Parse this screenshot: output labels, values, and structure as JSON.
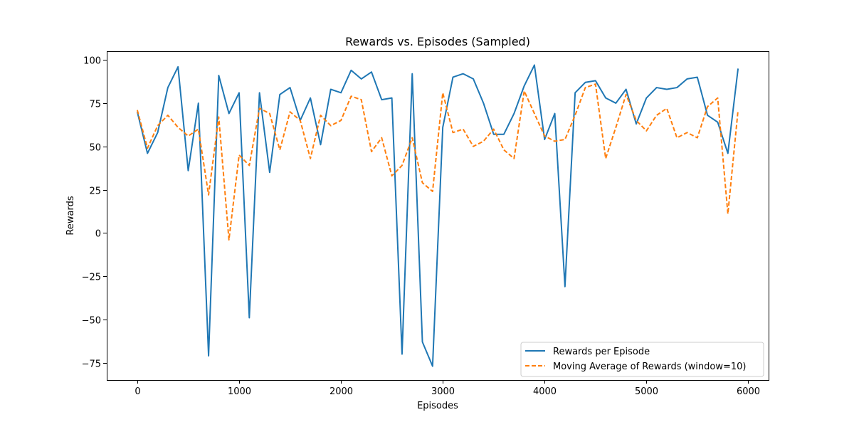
{
  "chart_data": {
    "type": "line",
    "title": "Rewards vs. Episodes (Sampled)",
    "xlabel": "Episodes",
    "ylabel": "Rewards",
    "xlim": [
      -300,
      6200
    ],
    "ylim": [
      -85,
      105
    ],
    "xticks": [
      0,
      1000,
      2000,
      3000,
      4000,
      5000,
      6000
    ],
    "xtick_labels": [
      "0",
      "1000",
      "2000",
      "3000",
      "4000",
      "5000",
      "6000"
    ],
    "yticks": [
      -75,
      -50,
      -25,
      0,
      25,
      50,
      75,
      100
    ],
    "ytick_labels": [
      "−75",
      "−50",
      "−25",
      "0",
      "25",
      "50",
      "75",
      "100"
    ],
    "grid": false,
    "legend_position": "lower-right",
    "x": [
      0,
      100,
      200,
      300,
      400,
      500,
      600,
      700,
      800,
      900,
      1000,
      1100,
      1200,
      1300,
      1400,
      1500,
      1600,
      1700,
      1800,
      1900,
      2000,
      2100,
      2200,
      2300,
      2400,
      2500,
      2600,
      2700,
      2800,
      2900,
      3000,
      3100,
      3200,
      3300,
      3400,
      3500,
      3600,
      3700,
      3800,
      3900,
      4000,
      4100,
      4200,
      4300,
      4400,
      4500,
      4600,
      4700,
      4800,
      4900,
      5000,
      5100,
      5200,
      5300,
      5400,
      5500,
      5600,
      5700,
      5800,
      5900
    ],
    "series": [
      {
        "name": "Rewards per Episode",
        "color": "#1f77b4",
        "style": "solid",
        "values": [
          70,
          46,
          58,
          84,
          96,
          36,
          75,
          -71,
          91,
          69,
          81,
          -49,
          81,
          35,
          80,
          84,
          65,
          78,
          51,
          83,
          81,
          94,
          89,
          93,
          77,
          78,
          -70,
          92,
          -63,
          -77,
          61,
          90,
          92,
          89,
          75,
          57,
          57,
          69,
          85,
          97,
          54,
          69,
          -31,
          81,
          87,
          88,
          78,
          75,
          83,
          63,
          78,
          84,
          83,
          84,
          89,
          90,
          68,
          64,
          46,
          95
        ]
      },
      {
        "name": "Moving Average of Rewards (window=10)",
        "color": "#ff7f0e",
        "style": "dashed",
        "values": [
          71,
          49,
          62,
          68,
          61,
          56,
          60,
          22,
          67,
          -4,
          45,
          39,
          72,
          69,
          48,
          70,
          65,
          43,
          68,
          62,
          65,
          79,
          77,
          47,
          55,
          33,
          39,
          55,
          29,
          24,
          81,
          58,
          60,
          50,
          53,
          60,
          48,
          43,
          82,
          69,
          56,
          53,
          54,
          68,
          84,
          86,
          43,
          61,
          80,
          65,
          59,
          68,
          72,
          55,
          58,
          55,
          73,
          78,
          11,
          71
        ]
      }
    ]
  }
}
